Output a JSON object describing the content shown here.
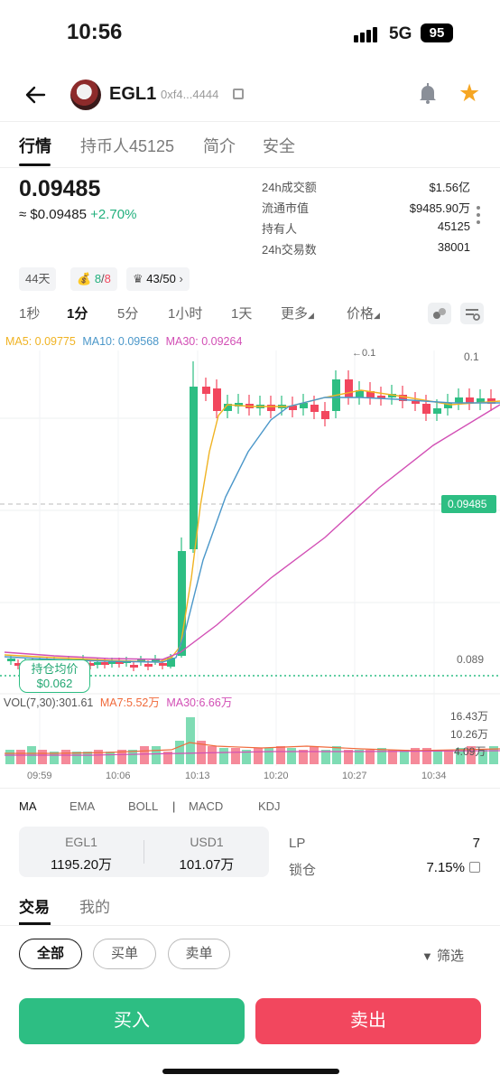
{
  "status": {
    "time": "10:56",
    "network": "5G",
    "battery": "95"
  },
  "header": {
    "token_name": "EGL1",
    "address": "0xf4...4444"
  },
  "tabs": [
    "行情",
    "持币人45125",
    "简介",
    "安全"
  ],
  "price": {
    "main": "0.09485",
    "usd_prefix": "≈ $0.09485",
    "change": "+2.70%"
  },
  "stats": [
    {
      "label": "24h成交额",
      "value": "$1.56亿"
    },
    {
      "label": "流通市值",
      "value": "$9485.90万"
    },
    {
      "label": "持有人",
      "value": "45125"
    },
    {
      "label": "24h交易数",
      "value": "38001"
    }
  ],
  "chips": {
    "age": "44天",
    "bag_green": "8",
    "bag_sep": "/",
    "bag_red": "8",
    "crown": "43/50"
  },
  "intervals": [
    "1秒",
    "1分",
    "5分",
    "1小时",
    "1天",
    "更多",
    "价格"
  ],
  "ma_labels": {
    "ma5": "MA5: 0.09775",
    "ma10": "MA10: 0.09568",
    "ma30": "MA30: 0.09264"
  },
  "vol_labels": {
    "vol": "VOL(7,30):301.61",
    "ma7": "MA7:5.52万",
    "ma30": "MA30:6.66万"
  },
  "chart_labels": {
    "high_marker": "←0.1",
    "top": "0.1",
    "current": "0.09485",
    "bottom": "0.089",
    "avg_title": "持仓均价",
    "avg_value": "$0.062",
    "vol_ticks": [
      "16.43万",
      "10.26万",
      "4.09万"
    ],
    "times": [
      "09:59",
      "10:06",
      "10:13",
      "10:20",
      "10:27",
      "10:34"
    ]
  },
  "indicators": [
    "MA",
    "EMA",
    "BOLL",
    "|",
    "MACD",
    "KDJ"
  ],
  "pool": {
    "token_a": "EGL1",
    "value_a": "1195.20万",
    "token_b": "USD1",
    "value_b": "101.07万"
  },
  "lp": {
    "lp_label": "LP",
    "lp_value": "7",
    "lock_label": "锁仓",
    "lock_value": "7.15%"
  },
  "trade_tabs": [
    "交易",
    "我的"
  ],
  "filters": [
    "全部",
    "买单",
    "卖单"
  ],
  "filter_btn": "筛选",
  "actions": {
    "buy": "买入",
    "sell": "卖出"
  },
  "colors": {
    "up": "#2dbe83",
    "down": "#f2475e",
    "ma5": "#f0b323",
    "ma10": "#4b97c9",
    "ma30": "#d24fb5"
  },
  "chart_data": {
    "type": "candlestick",
    "x": [
      "09:59",
      "10:06",
      "10:13",
      "10:20",
      "10:27",
      "10:34"
    ],
    "price_axis": [
      0.089,
      0.1
    ],
    "current_price": 0.09485,
    "avg_cost": 0.062,
    "series": [
      {
        "name": "MA5",
        "last": 0.09775
      },
      {
        "name": "MA10",
        "last": 0.09568
      },
      {
        "name": "MA30",
        "last": 0.09264
      }
    ],
    "volume": {
      "VOL": 301.61,
      "MA7": "5.52万",
      "MA30": "6.66万",
      "ticks": [
        "16.43万",
        "10.26万",
        "4.09万"
      ]
    }
  }
}
